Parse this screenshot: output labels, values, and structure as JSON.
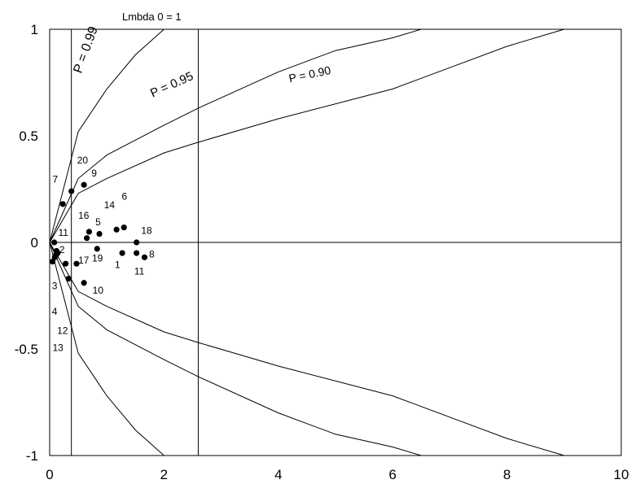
{
  "chart_data": {
    "type": "scatter",
    "title": "Lmbda  0 = 1",
    "xlabel": "",
    "ylabel": "",
    "xlim": [
      0,
      10
    ],
    "ylim": [
      -1,
      1
    ],
    "x_ticks": [
      "0",
      "2",
      "4",
      "6",
      "8",
      "10"
    ],
    "y_ticks": [
      "1",
      "0.5",
      "0",
      "-0.5",
      "-1"
    ],
    "x_tick_values": [
      0,
      2,
      4,
      6,
      8,
      10
    ],
    "y_tick_values": [
      1,
      0.5,
      0,
      -0.5,
      -1
    ],
    "reference_lines": {
      "horizontal_y": 0,
      "vertical_x": [
        0.38,
        2.6
      ]
    },
    "curves": [
      {
        "label": "P = 0.99",
        "upper": [
          [
            0,
            0
          ],
          [
            0.5,
            0.52
          ],
          [
            1.0,
            0.72
          ],
          [
            1.5,
            0.88
          ],
          [
            2.0,
            1.0
          ]
        ],
        "lower": [
          [
            0,
            0
          ],
          [
            0.5,
            -0.52
          ],
          [
            1.0,
            -0.72
          ],
          [
            1.5,
            -0.88
          ],
          [
            2.0,
            -1.0
          ]
        ]
      },
      {
        "label": "P = 0.95",
        "upper": [
          [
            0,
            0
          ],
          [
            0.5,
            0.3
          ],
          [
            1.0,
            0.41
          ],
          [
            2.0,
            0.55
          ],
          [
            2.6,
            0.63
          ],
          [
            4.0,
            0.8
          ],
          [
            5.0,
            0.9
          ],
          [
            6.0,
            0.96
          ],
          [
            6.5,
            1.0
          ]
        ],
        "lower": [
          [
            0,
            0
          ],
          [
            0.5,
            -0.3
          ],
          [
            1.0,
            -0.41
          ],
          [
            2.0,
            -0.55
          ],
          [
            2.6,
            -0.63
          ],
          [
            4.0,
            -0.8
          ],
          [
            5.0,
            -0.9
          ],
          [
            6.0,
            -0.96
          ],
          [
            6.5,
            -1.0
          ]
        ]
      },
      {
        "label": "P = 0.90",
        "upper": [
          [
            0,
            0
          ],
          [
            0.5,
            0.23
          ],
          [
            1.0,
            0.3
          ],
          [
            2.0,
            0.42
          ],
          [
            2.6,
            0.47
          ],
          [
            4.0,
            0.58
          ],
          [
            6.0,
            0.72
          ],
          [
            7.0,
            0.82
          ],
          [
            8.0,
            0.92
          ],
          [
            9.0,
            1.0
          ]
        ],
        "lower": [
          [
            0,
            0
          ],
          [
            0.5,
            -0.23
          ],
          [
            1.0,
            -0.3
          ],
          [
            2.0,
            -0.42
          ],
          [
            2.6,
            -0.47
          ],
          [
            4.0,
            -0.58
          ],
          [
            6.0,
            -0.72
          ],
          [
            7.0,
            -0.82
          ],
          [
            8.0,
            -0.92
          ],
          [
            9.0,
            -1.0
          ]
        ]
      }
    ],
    "curve_labels": [
      {
        "text": "P = 0.99",
        "x": 0.55,
        "y": 0.79,
        "rot": -70,
        "size": 16
      },
      {
        "text": "P = 0.95",
        "x": 1.8,
        "y": 0.68,
        "rot": -24,
        "size": 15
      },
      {
        "text": "P = 0.90",
        "x": 4.2,
        "y": 0.75,
        "rot": -12,
        "size": 14
      }
    ],
    "points": [
      {
        "label": "1",
        "x": 1.27,
        "y": -0.05,
        "lx": 1.14,
        "ly": -0.12
      },
      {
        "label": "2",
        "x": 0.12,
        "y": -0.04,
        "lx": 0.17,
        "ly": -0.05
      },
      {
        "label": "3",
        "x": 0.09,
        "y": -0.07,
        "lx": 0.04,
        "ly": -0.22
      },
      {
        "label": "4",
        "x": 0.05,
        "y": -0.09,
        "lx": 0.04,
        "ly": -0.34
      },
      {
        "label": "5",
        "x": 0.87,
        "y": 0.04,
        "lx": 0.8,
        "ly": 0.08
      },
      {
        "label": "6",
        "x": 1.3,
        "y": 0.07,
        "lx": 1.26,
        "ly": 0.2
      },
      {
        "label": "7",
        "x": 0.23,
        "y": 0.18,
        "lx": 0.05,
        "ly": 0.28
      },
      {
        "label": "8",
        "x": 1.66,
        "y": -0.07,
        "lx": 1.74,
        "ly": -0.07
      },
      {
        "label": "9",
        "x": 0.6,
        "y": 0.27,
        "lx": 0.73,
        "ly": 0.31
      },
      {
        "label": "10",
        "x": 0.6,
        "y": -0.19,
        "lx": 0.75,
        "ly": -0.24
      },
      {
        "label": "11",
        "x": 0.08,
        "y": 0.0,
        "lx": 0.15,
        "ly": 0.03
      },
      {
        "label": "11",
        "x": 1.52,
        "y": -0.05,
        "lx": 1.48,
        "ly": -0.15
      },
      {
        "label": "12",
        "x": 0.11,
        "y": -0.06,
        "lx": 0.13,
        "ly": -0.43
      },
      {
        "label": "13",
        "x": 0.14,
        "y": -0.05,
        "lx": 0.05,
        "ly": -0.51
      },
      {
        "label": "14",
        "x": 1.17,
        "y": 0.06,
        "lx": 0.95,
        "ly": 0.16
      },
      {
        "label": "16",
        "x": 0.69,
        "y": 0.05,
        "lx": 0.5,
        "ly": 0.11
      },
      {
        "label": "17",
        "x": 0.47,
        "y": -0.1,
        "lx": 0.5,
        "ly": -0.1
      },
      {
        "label": "17",
        "x": 0.28,
        "y": -0.1,
        "lx": 0.0,
        "ly": 0.0,
        "hide_label": true
      },
      {
        "label": "18",
        "x": 1.52,
        "y": 0.0,
        "lx": 1.6,
        "ly": 0.04
      },
      {
        "label": "19",
        "x": 0.83,
        "y": -0.03,
        "lx": 0.74,
        "ly": -0.09
      },
      {
        "label": "20",
        "x": 0.38,
        "y": 0.24,
        "lx": 0.48,
        "ly": 0.37
      },
      {
        "label": "",
        "x": 0.65,
        "y": 0.02,
        "lx": 0,
        "ly": 0
      },
      {
        "label": "",
        "x": 0.33,
        "y": -0.17,
        "lx": 0,
        "ly": 0
      }
    ]
  }
}
